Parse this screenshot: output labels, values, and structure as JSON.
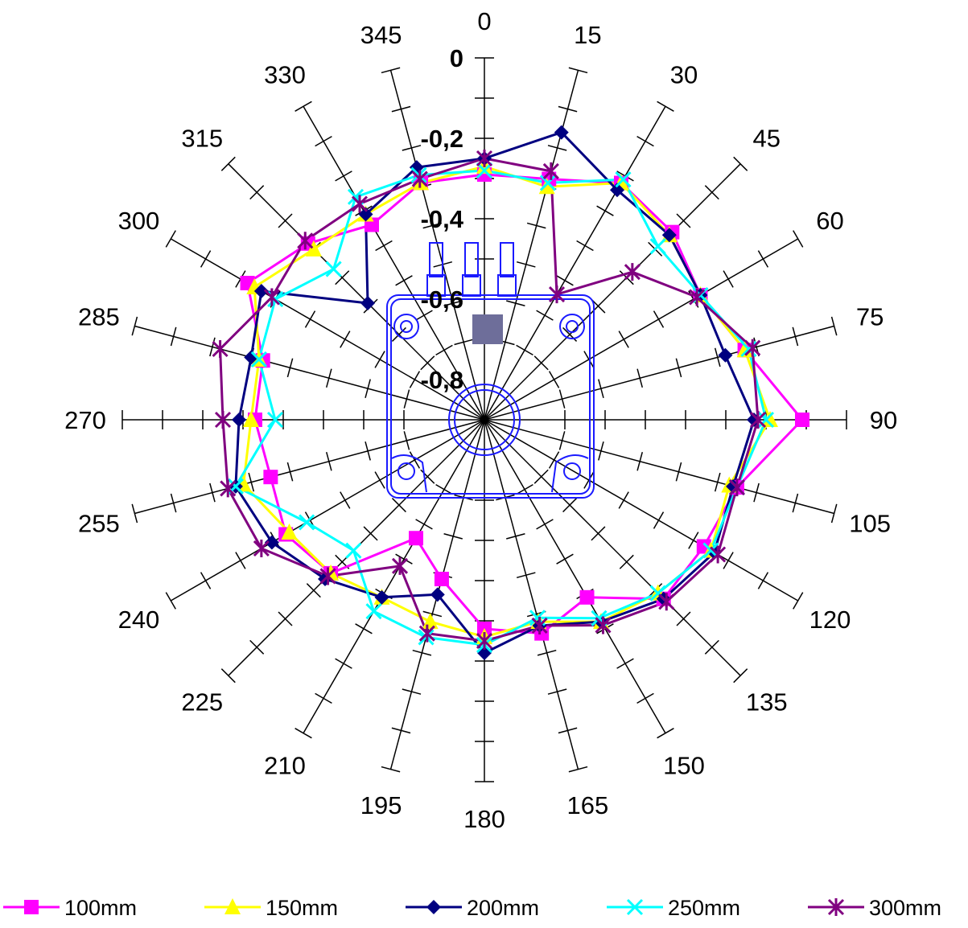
{
  "chart_data": {
    "type": "radar",
    "angles": [
      0,
      15,
      30,
      45,
      60,
      75,
      90,
      105,
      120,
      135,
      150,
      165,
      180,
      195,
      210,
      225,
      240,
      255,
      270,
      285,
      300,
      315,
      330,
      345
    ],
    "angle_labels": [
      "0",
      "15",
      "30",
      "45",
      "60",
      "75",
      "90",
      "105",
      "120",
      "135",
      "150",
      "165",
      "180",
      "195",
      "210",
      "225",
      "240",
      "255",
      "270",
      "285",
      "300",
      "315",
      "330",
      "345"
    ],
    "radial_axis": {
      "min": -0.9,
      "max": 0.0,
      "tick_values": [
        0,
        -0.2,
        -0.4,
        -0.6,
        -0.8
      ],
      "tick_labels": [
        "0",
        "-0,2",
        "-0,4",
        "-0,6",
        "-0,8"
      ]
    },
    "legend_position": "bottom",
    "series": [
      {
        "name": "100mm",
        "color": "#ff00ff",
        "marker": "square",
        "values": [
          -0.29,
          -0.28,
          -0.22,
          -0.24,
          -0.28,
          -0.23,
          -0.11,
          -0.25,
          -0.27,
          -0.27,
          -0.39,
          -0.35,
          -0.38,
          -0.49,
          -0.56,
          -0.36,
          -0.33,
          -0.35,
          -0.33,
          -0.33,
          -0.22,
          -0.28,
          -0.34,
          -0.29
        ]
      },
      {
        "name": "150mm",
        "color": "#ffff00",
        "marker": "triangle",
        "values": [
          -0.27,
          -0.3,
          -0.22,
          -0.25,
          -0.28,
          -0.23,
          -0.19,
          -0.27,
          -0.25,
          -0.29,
          -0.32,
          -0.38,
          -0.36,
          -0.38,
          -0.39,
          -0.36,
          -0.34,
          -0.28,
          -0.32,
          -0.32,
          -0.24,
          -0.3,
          -0.31,
          -0.29
        ]
      },
      {
        "name": "200mm",
        "color": "#000080",
        "marker": "diamond",
        "values": [
          -0.25,
          -0.16,
          -0.24,
          -0.25,
          -0.28,
          -0.28,
          -0.23,
          -0.26,
          -0.24,
          -0.27,
          -0.32,
          -0.37,
          -0.32,
          -0.45,
          -0.39,
          -0.34,
          -0.29,
          -0.26,
          -0.29,
          -0.3,
          -0.26,
          -0.49,
          -0.31,
          -0.25
        ]
      },
      {
        "name": "250mm",
        "color": "#00ffff",
        "marker": "x",
        "values": [
          -0.28,
          -0.29,
          -0.21,
          -0.29,
          -0.28,
          -0.22,
          -0.2,
          -0.25,
          -0.25,
          -0.29,
          -0.33,
          -0.39,
          -0.34,
          -0.34,
          -0.35,
          -0.44,
          -0.39,
          -0.26,
          -0.38,
          -0.32,
          -0.3,
          -0.37,
          -0.26,
          -0.27
        ]
      },
      {
        "name": "300mm",
        "color": "#800080",
        "marker": "star",
        "values": [
          -0.25,
          -0.26,
          -0.54,
          -0.38,
          -0.29,
          -0.21,
          -0.22,
          -0.25,
          -0.23,
          -0.26,
          -0.31,
          -0.37,
          -0.35,
          -0.35,
          -0.48,
          -0.35,
          -0.26,
          -0.24,
          -0.25,
          -0.22,
          -0.29,
          -0.27,
          -0.28,
          -0.28
        ]
      }
    ]
  }
}
